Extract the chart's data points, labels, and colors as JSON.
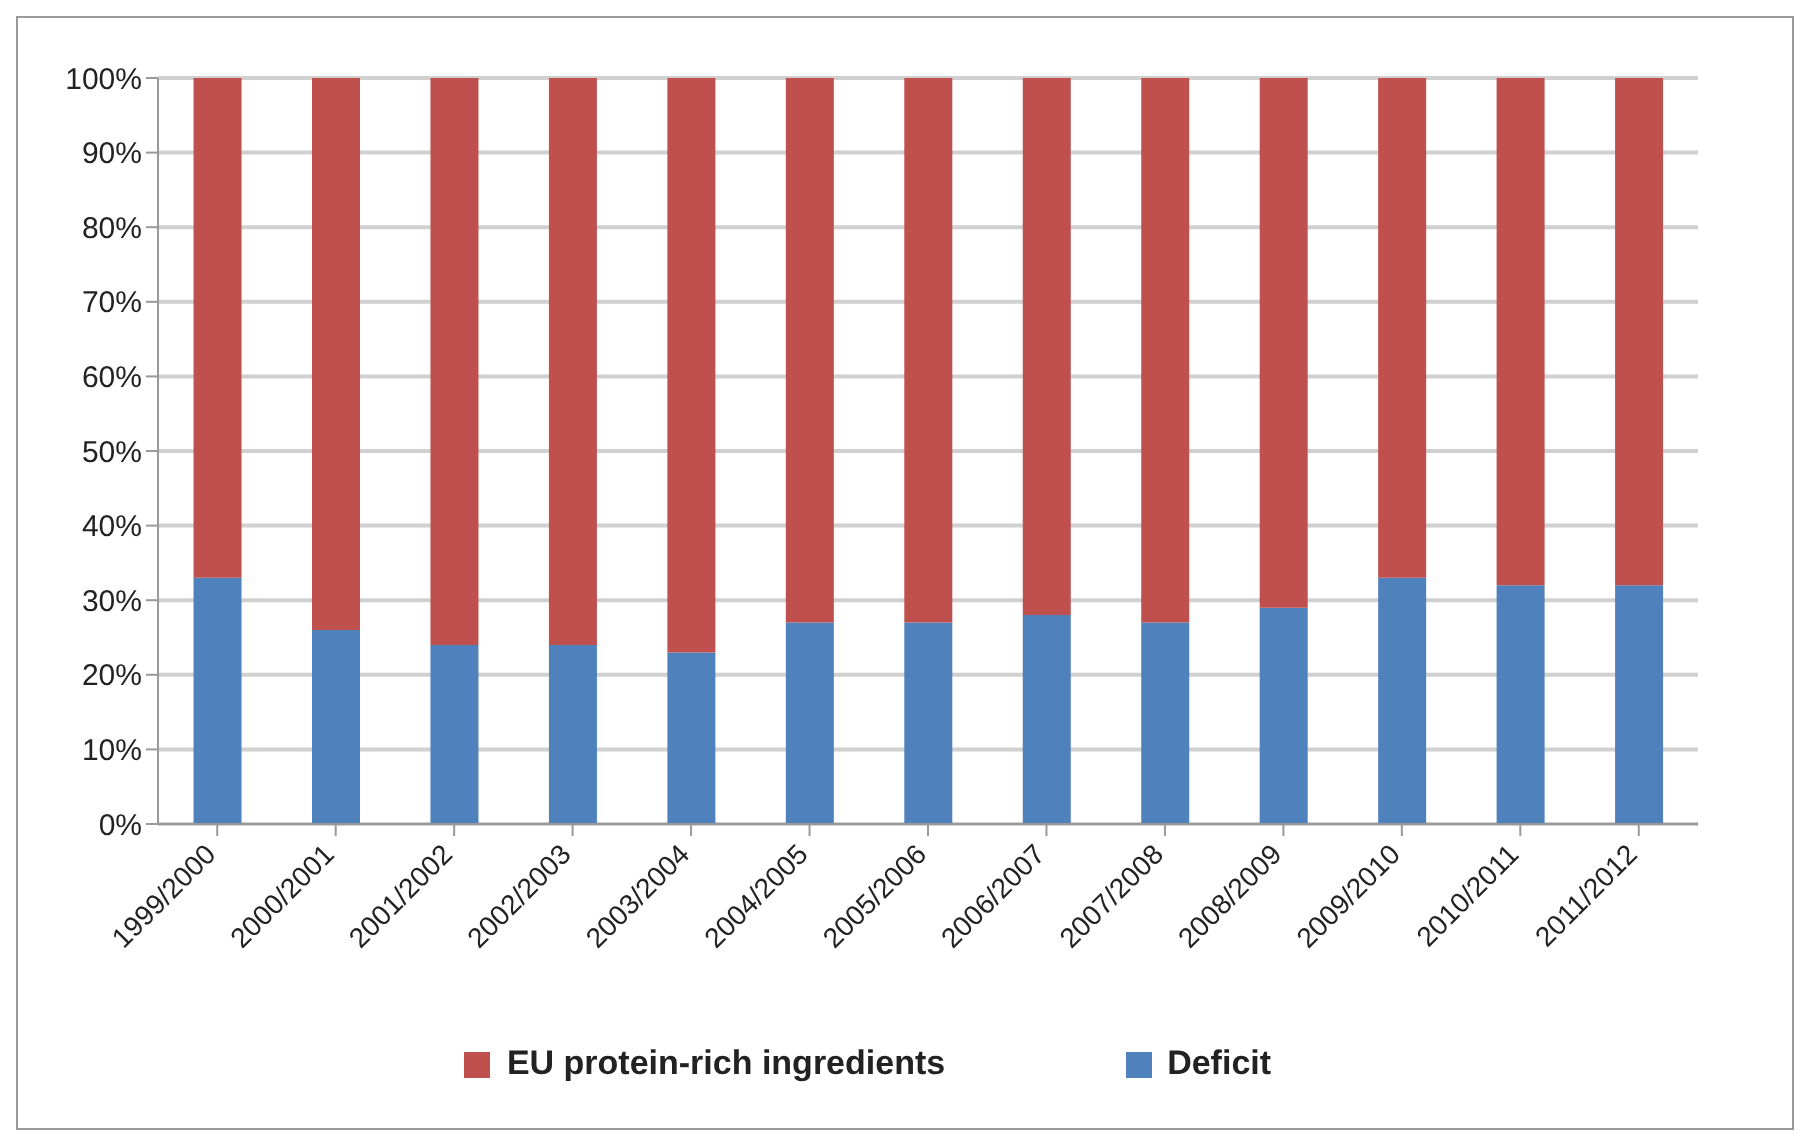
{
  "chart_data": {
    "type": "bar",
    "stacked": true,
    "categories": [
      "1999/2000",
      "2000/2001",
      "2001/2002",
      "2002/2003",
      "2003/2004",
      "2004/2005",
      "2005/2006",
      "2006/2007",
      "2007/2008",
      "2008/2009",
      "2009/2010",
      "2010/2011",
      "2011/2012"
    ],
    "series": [
      {
        "name": "Deficit",
        "color": "#4f81bd",
        "values": [
          33,
          26,
          24,
          24,
          23,
          27,
          27,
          28,
          27,
          29,
          33,
          32,
          32
        ]
      },
      {
        "name": "EU protein-rich ingredients",
        "color": "#c0504d",
        "values": [
          67,
          74,
          76,
          76,
          77,
          73,
          73,
          72,
          73,
          71,
          67,
          68,
          68
        ]
      }
    ],
    "ylim": [
      0,
      100
    ],
    "yticks": [
      {
        "value": 0,
        "label": "0%"
      },
      {
        "value": 10,
        "label": "10%"
      },
      {
        "value": 20,
        "label": "20%"
      },
      {
        "value": 30,
        "label": "30%"
      },
      {
        "value": 40,
        "label": "40%"
      },
      {
        "value": 50,
        "label": "50%"
      },
      {
        "value": 60,
        "label": "60%"
      },
      {
        "value": 70,
        "label": "70%"
      },
      {
        "value": 80,
        "label": "80%"
      },
      {
        "value": 90,
        "label": "90%"
      },
      {
        "value": 100,
        "label": "100%"
      }
    ],
    "grid": "y",
    "legend": "bottom"
  }
}
